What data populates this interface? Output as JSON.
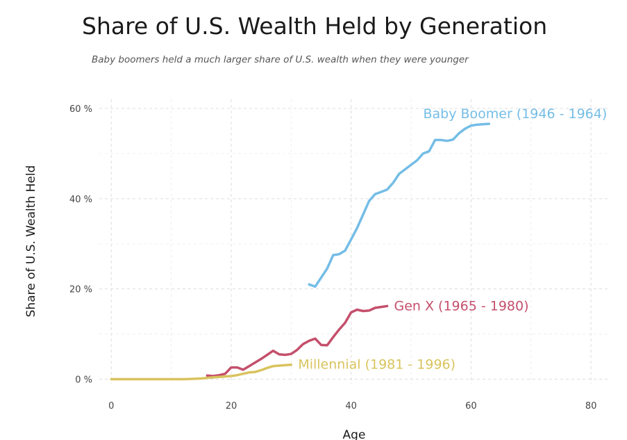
{
  "chart_data": {
    "type": "line",
    "title": "Share of U.S. Wealth Held by Generation",
    "subtitle": "Baby boomers held a much larger share of U.S. wealth when they were younger",
    "xlabel": "Age",
    "ylabel": "Share of U.S. Wealth Held",
    "xlim": [
      -2,
      83
    ],
    "ylim": [
      -1,
      62
    ],
    "x_ticks": [
      0,
      20,
      40,
      60,
      80
    ],
    "x_tick_labels": [
      "0",
      "20",
      "40",
      "60",
      "80"
    ],
    "y_ticks": [
      0,
      20,
      40,
      60
    ],
    "y_tick_labels": [
      "0 %",
      "20 %",
      "40 %",
      "60 %"
    ],
    "grid": true,
    "legend": "direct labels at line ends",
    "series": [
      {
        "name": "Baby Boomer (1946 - 1964)",
        "color": "#74bde6",
        "x": [
          33,
          34,
          35,
          36,
          37,
          38,
          39,
          40,
          41,
          42,
          43,
          44,
          45,
          46,
          47,
          48,
          49,
          50,
          51,
          52,
          53,
          54,
          55,
          56,
          57,
          58,
          59,
          60,
          61,
          62,
          63
        ],
        "y": [
          21,
          20.5,
          22.5,
          24.5,
          27.5,
          27.7,
          28.5,
          31,
          33.5,
          36.5,
          39.5,
          41,
          41.5,
          42,
          43.5,
          45.5,
          46.5,
          47.5,
          48.5,
          50,
          50.5,
          53,
          53,
          52.8,
          53.1,
          54.5,
          55.5,
          56.2,
          56.4,
          56.5,
          56.6
        ]
      },
      {
        "name": "Gen X (1965 - 1980)",
        "color": "#c44f6b",
        "x": [
          16,
          17,
          18,
          19,
          20,
          21,
          22,
          23,
          24,
          25,
          26,
          27,
          28,
          29,
          30,
          31,
          32,
          33,
          34,
          35,
          36,
          37,
          38,
          39,
          40,
          41,
          42,
          43,
          44,
          45,
          46
        ],
        "y": [
          0.8,
          0.7,
          0.9,
          1.2,
          2.6,
          2.6,
          2.1,
          2.9,
          3.7,
          4.5,
          5.4,
          6.3,
          5.5,
          5.4,
          5.6,
          6.5,
          7.8,
          8.5,
          9.0,
          7.6,
          7.5,
          9.3,
          11,
          12.5,
          14.8,
          15.4,
          15.1,
          15.2,
          15.8,
          16.0,
          16.2
        ]
      },
      {
        "name": "Millennial (1981 - 1996)",
        "color": "#d9c35e",
        "x": [
          0,
          2,
          4,
          6,
          8,
          10,
          12,
          13,
          14,
          15,
          16,
          17,
          18,
          19,
          20,
          21,
          22,
          23,
          24,
          25,
          26,
          27,
          28,
          29,
          30
        ],
        "y": [
          0,
          0,
          0,
          0,
          0,
          0,
          0,
          0.05,
          0.1,
          0.15,
          0.3,
          0.4,
          0.5,
          0.6,
          0.7,
          0.9,
          1.2,
          1.5,
          1.6,
          2.0,
          2.5,
          2.9,
          3.0,
          3.1,
          3.2
        ]
      }
    ]
  }
}
